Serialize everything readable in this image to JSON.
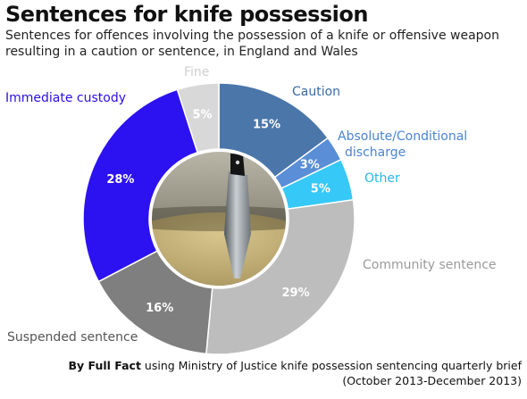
{
  "title": "Sentences for knife possession",
  "subtitle": "Sentences for offences involving the possession of a knife or offensive weapon resulting in a caution or sentence, in England and Wales",
  "source": {
    "author": "By Full Fact",
    "text": "using Ministry of Justice knife possession sentencing quarterly brief",
    "period": "(October 2013-December 2013)"
  },
  "chart_data": {
    "type": "pie",
    "title": "Sentences for knife possession",
    "slices": [
      {
        "label": "Caution",
        "value": 15,
        "pct_label": "15%",
        "color": "#4a76aa",
        "label_color": "#3a6aa4"
      },
      {
        "label": "Absolute/Conditional discharge",
        "value": 3,
        "pct_label": "3%",
        "color": "#5a8ed6",
        "label_color": "#4a84d4"
      },
      {
        "label": "Other",
        "value": 5,
        "pct_label": "5%",
        "color": "#36c8f7",
        "label_color": "#22b8ee"
      },
      {
        "label": "Community sentence",
        "value": 29,
        "pct_label": "29%",
        "color": "#bdbdbd",
        "label_color": "#9a9a9a"
      },
      {
        "label": "Suspended sentence",
        "value": 16,
        "pct_label": "16%",
        "color": "#7f7f7f",
        "label_color": "#555555"
      },
      {
        "label": "Immediate custody",
        "value": 28,
        "pct_label": "28%",
        "color": "#2c12f0",
        "label_color": "#2a10e6"
      },
      {
        "label": "Fine",
        "value": 5,
        "pct_label": "5%",
        "color": "#d8d8d8",
        "label_color": "#cfcfcf"
      }
    ],
    "legend": "none",
    "center_image": "knife-photo"
  }
}
